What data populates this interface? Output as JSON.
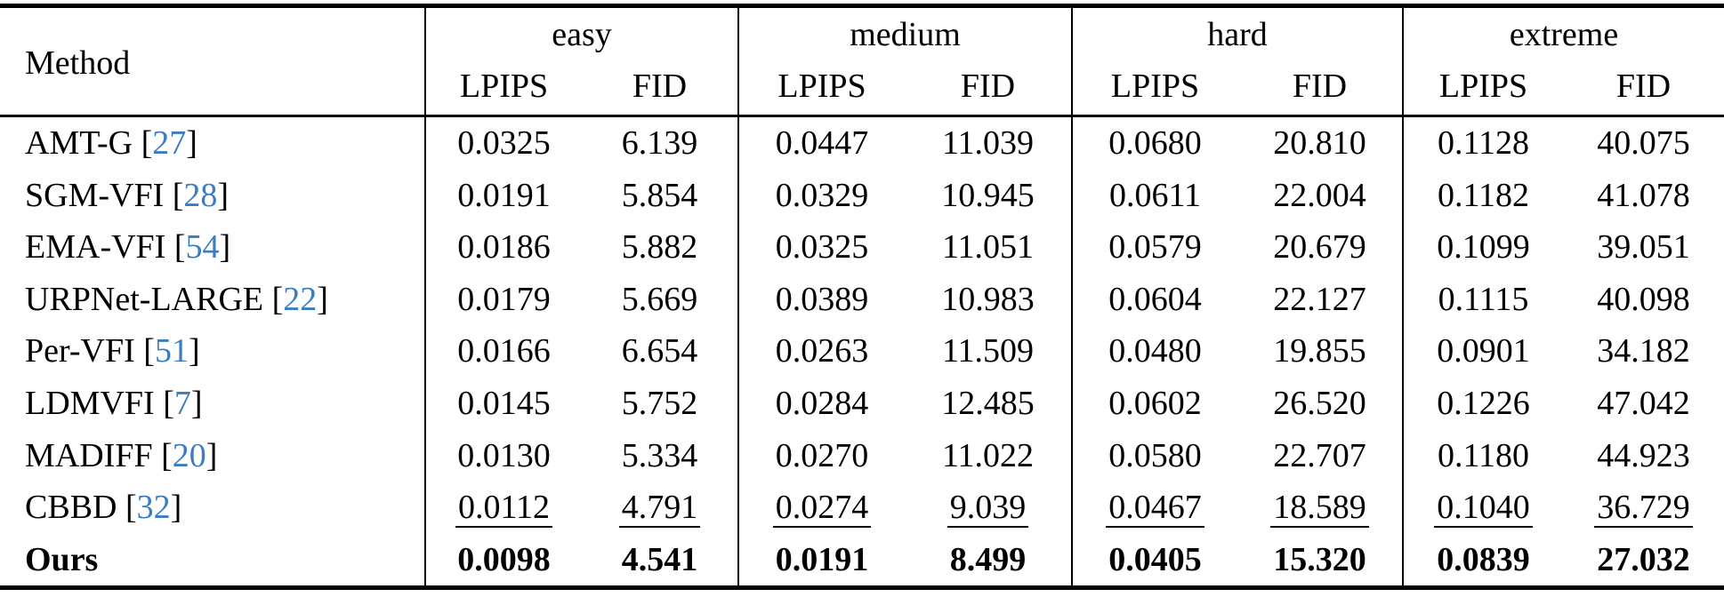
{
  "table": {
    "method_header": "Method",
    "citation_color": "#3c7dc2",
    "text_color": "#000000",
    "background": "#ffffff",
    "groups": [
      {
        "label": "easy",
        "cols": [
          "LPIPS",
          "FID"
        ]
      },
      {
        "label": "medium",
        "cols": [
          "LPIPS",
          "FID"
        ]
      },
      {
        "label": "hard",
        "cols": [
          "LPIPS",
          "FID"
        ]
      },
      {
        "label": "extreme",
        "cols": [
          "LPIPS",
          "FID"
        ]
      }
    ],
    "rows": [
      {
        "method": "AMT-G",
        "cite": "27",
        "style": "normal",
        "values": [
          "0.0325",
          "6.139",
          "0.0447",
          "11.039",
          "0.0680",
          "20.810",
          "0.1128",
          "40.075"
        ]
      },
      {
        "method": "SGM-VFI",
        "cite": "28",
        "style": "normal",
        "values": [
          "0.0191",
          "5.854",
          "0.0329",
          "10.945",
          "0.0611",
          "22.004",
          "0.1182",
          "41.078"
        ]
      },
      {
        "method": "EMA-VFI",
        "cite": "54",
        "style": "normal",
        "values": [
          "0.0186",
          "5.882",
          "0.0325",
          "11.051",
          "0.0579",
          "20.679",
          "0.1099",
          "39.051"
        ]
      },
      {
        "method": "URPNet-LARGE",
        "cite": "22",
        "style": "normal",
        "values": [
          "0.0179",
          "5.669",
          "0.0389",
          "10.983",
          "0.0604",
          "22.127",
          "0.1115",
          "40.098"
        ]
      },
      {
        "method": "Per-VFI",
        "cite": "51",
        "style": "normal",
        "values": [
          "0.0166",
          "6.654",
          "0.0263",
          "11.509",
          "0.0480",
          "19.855",
          "0.0901",
          "34.182"
        ]
      },
      {
        "method": "LDMVFI",
        "cite": "7",
        "style": "normal",
        "values": [
          "0.0145",
          "5.752",
          "0.0284",
          "12.485",
          "0.0602",
          "26.520",
          "0.1226",
          "47.042"
        ]
      },
      {
        "method": "MADIFF",
        "cite": "20",
        "style": "normal",
        "values": [
          "0.0130",
          "5.334",
          "0.0270",
          "11.022",
          "0.0580",
          "22.707",
          "0.1180",
          "44.923"
        ]
      },
      {
        "method": "CBBD",
        "cite": "32",
        "style": "underline",
        "values": [
          "0.0112",
          "4.791",
          "0.0274",
          "9.039",
          "0.0467",
          "18.589",
          "0.1040",
          "36.729"
        ]
      },
      {
        "method": "Ours",
        "cite": null,
        "style": "bold",
        "values": [
          "0.0098",
          "4.541",
          "0.0191",
          "8.499",
          "0.0405",
          "15.320",
          "0.0839",
          "27.032"
        ]
      }
    ]
  },
  "chart_data": {
    "type": "table",
    "title": "",
    "columns": [
      "Method",
      "easy LPIPS",
      "easy FID",
      "medium LPIPS",
      "medium FID",
      "hard LPIPS",
      "hard FID",
      "extreme LPIPS",
      "extreme FID"
    ],
    "rows": [
      [
        "AMT-G [27]",
        0.0325,
        6.139,
        0.0447,
        11.039,
        0.068,
        20.81,
        0.1128,
        40.075
      ],
      [
        "SGM-VFI [28]",
        0.0191,
        5.854,
        0.0329,
        10.945,
        0.0611,
        22.004,
        0.1182,
        41.078
      ],
      [
        "EMA-VFI [54]",
        0.0186,
        5.882,
        0.0325,
        11.051,
        0.0579,
        20.679,
        0.1099,
        39.051
      ],
      [
        "URPNet-LARGE [22]",
        0.0179,
        5.669,
        0.0389,
        10.983,
        0.0604,
        22.127,
        0.1115,
        40.098
      ],
      [
        "Per-VFI [51]",
        0.0166,
        6.654,
        0.0263,
        11.509,
        0.048,
        19.855,
        0.0901,
        34.182
      ],
      [
        "LDMVFI [7]",
        0.0145,
        5.752,
        0.0284,
        12.485,
        0.0602,
        26.52,
        0.1226,
        47.042
      ],
      [
        "MADIFF [20]",
        0.013,
        5.334,
        0.027,
        11.022,
        0.058,
        22.707,
        0.118,
        44.923
      ],
      [
        "CBBD [32]",
        0.0112,
        4.791,
        0.0274,
        9.039,
        0.0467,
        18.589,
        0.104,
        36.729
      ],
      [
        "Ours",
        0.0098,
        4.541,
        0.0191,
        8.499,
        0.0405,
        15.32,
        0.0839,
        27.032
      ]
    ]
  }
}
